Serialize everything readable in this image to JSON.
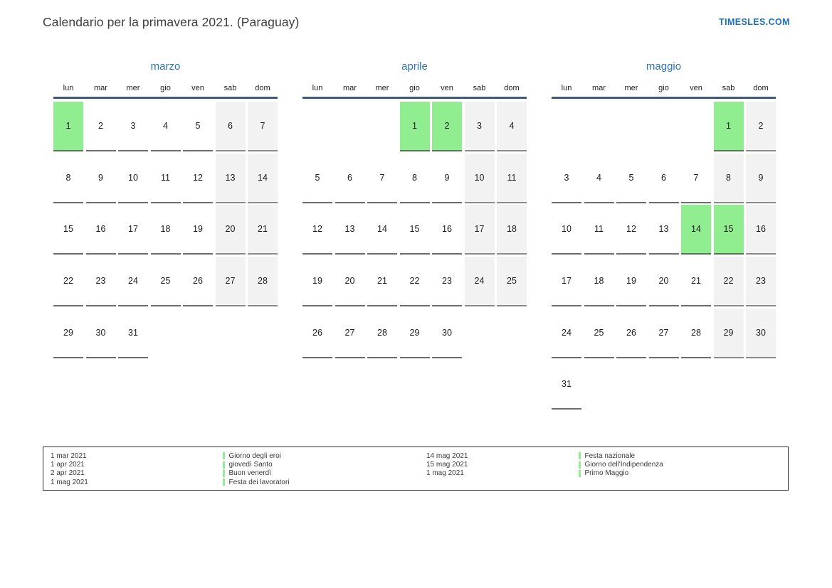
{
  "header": {
    "title": "Calendario per la primavera 2021. (Paraguay)",
    "site_link": "TIMESLES.COM"
  },
  "calendar": {
    "weekdays": [
      "lun",
      "mar",
      "mer",
      "gio",
      "ven",
      "sab",
      "dom"
    ],
    "months": [
      {
        "name": "marzo",
        "weeks": [
          [
            {
              "d": "1",
              "h": true
            },
            {
              "d": "2"
            },
            {
              "d": "3"
            },
            {
              "d": "4"
            },
            {
              "d": "5"
            },
            {
              "d": "6"
            },
            {
              "d": "7"
            }
          ],
          [
            {
              "d": "8"
            },
            {
              "d": "9"
            },
            {
              "d": "10"
            },
            {
              "d": "11"
            },
            {
              "d": "12"
            },
            {
              "d": "13"
            },
            {
              "d": "14"
            }
          ],
          [
            {
              "d": "15"
            },
            {
              "d": "16"
            },
            {
              "d": "17"
            },
            {
              "d": "18"
            },
            {
              "d": "19"
            },
            {
              "d": "20"
            },
            {
              "d": "21"
            }
          ],
          [
            {
              "d": "22"
            },
            {
              "d": "23"
            },
            {
              "d": "24"
            },
            {
              "d": "25"
            },
            {
              "d": "26"
            },
            {
              "d": "27"
            },
            {
              "d": "28"
            }
          ],
          [
            {
              "d": "29"
            },
            {
              "d": "30"
            },
            {
              "d": "31"
            },
            null,
            null,
            null,
            null
          ]
        ]
      },
      {
        "name": "aprile",
        "weeks": [
          [
            null,
            null,
            null,
            {
              "d": "1",
              "h": true
            },
            {
              "d": "2",
              "h": true
            },
            {
              "d": "3"
            },
            {
              "d": "4"
            }
          ],
          [
            {
              "d": "5"
            },
            {
              "d": "6"
            },
            {
              "d": "7"
            },
            {
              "d": "8"
            },
            {
              "d": "9"
            },
            {
              "d": "10"
            },
            {
              "d": "11"
            }
          ],
          [
            {
              "d": "12"
            },
            {
              "d": "13"
            },
            {
              "d": "14"
            },
            {
              "d": "15"
            },
            {
              "d": "16"
            },
            {
              "d": "17"
            },
            {
              "d": "18"
            }
          ],
          [
            {
              "d": "19"
            },
            {
              "d": "20"
            },
            {
              "d": "21"
            },
            {
              "d": "22"
            },
            {
              "d": "23"
            },
            {
              "d": "24"
            },
            {
              "d": "25"
            }
          ],
          [
            {
              "d": "26"
            },
            {
              "d": "27"
            },
            {
              "d": "28"
            },
            {
              "d": "29"
            },
            {
              "d": "30"
            },
            null,
            null
          ]
        ]
      },
      {
        "name": "maggio",
        "weeks": [
          [
            null,
            null,
            null,
            null,
            null,
            {
              "d": "1",
              "h": true
            },
            {
              "d": "2"
            }
          ],
          [
            {
              "d": "3"
            },
            {
              "d": "4"
            },
            {
              "d": "5"
            },
            {
              "d": "6"
            },
            {
              "d": "7"
            },
            {
              "d": "8"
            },
            {
              "d": "9"
            }
          ],
          [
            {
              "d": "10"
            },
            {
              "d": "11"
            },
            {
              "d": "12"
            },
            {
              "d": "13"
            },
            {
              "d": "14",
              "h": true
            },
            {
              "d": "15",
              "h": true
            },
            {
              "d": "16"
            }
          ],
          [
            {
              "d": "17"
            },
            {
              "d": "18"
            },
            {
              "d": "19"
            },
            {
              "d": "20"
            },
            {
              "d": "21"
            },
            {
              "d": "22"
            },
            {
              "d": "23"
            }
          ],
          [
            {
              "d": "24"
            },
            {
              "d": "25"
            },
            {
              "d": "26"
            },
            {
              "d": "27"
            },
            {
              "d": "28"
            },
            {
              "d": "29"
            },
            {
              "d": "30"
            }
          ],
          [
            {
              "d": "31"
            },
            null,
            null,
            null,
            null,
            null,
            null
          ]
        ]
      }
    ]
  },
  "legend": {
    "groups": [
      {
        "dates": [
          "1 mar 2021",
          "1 apr 2021",
          "2 apr 2021",
          "1 mag 2021"
        ],
        "labels": [
          "Giorno degli eroi",
          "giovedì Santo",
          "Buon venerdì",
          "Festa dei lavoratori"
        ]
      },
      {
        "dates": [
          "14 mag 2021",
          "15 mag 2021",
          "1 mag 2021"
        ],
        "labels": [
          "Festa nazionale",
          "Giorno dell'Indipendenza",
          "Primo Maggio"
        ]
      }
    ]
  },
  "colors": {
    "holiday_green": "#90ee90",
    "weekend_gray": "#f2f2f2",
    "month_title_blue": "#2e75b6",
    "header_line_blue": "#3d5a78",
    "link_blue": "#1b6ec2"
  }
}
